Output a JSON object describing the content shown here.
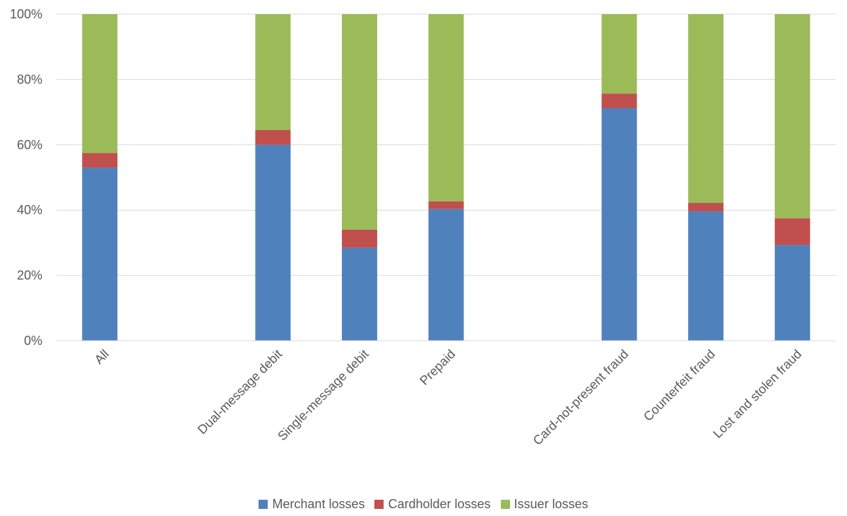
{
  "chart_data": {
    "type": "bar",
    "stacked": true,
    "title": "",
    "xlabel": "",
    "ylabel": "",
    "ylim": [
      0,
      100
    ],
    "y_ticks": [
      "0%",
      "20%",
      "40%",
      "60%",
      "80%",
      "100%"
    ],
    "grid": true,
    "legend_position": "bottom",
    "categories": [
      "All",
      "",
      "Dual-message debit",
      "Single-message debit",
      "Prepaid",
      "",
      "Card-not-present fraud",
      "Counterfeit fraud",
      "Lost and stolen fraud"
    ],
    "series": [
      {
        "name": "Merchant losses",
        "color": "#4f81bd",
        "values": [
          53,
          null,
          60,
          28.5,
          40.3,
          null,
          71.2,
          39.6,
          29.3
        ]
      },
      {
        "name": "Cardholder losses",
        "color": "#c0504d",
        "values": [
          4.5,
          null,
          4.5,
          5.5,
          2.4,
          null,
          4.5,
          2.6,
          8.2
        ]
      },
      {
        "name": "Issuer losses",
        "color": "#9bbb59",
        "values": [
          42.5,
          null,
          35.5,
          66,
          57.3,
          null,
          24.3,
          57.8,
          62.5
        ]
      }
    ]
  }
}
